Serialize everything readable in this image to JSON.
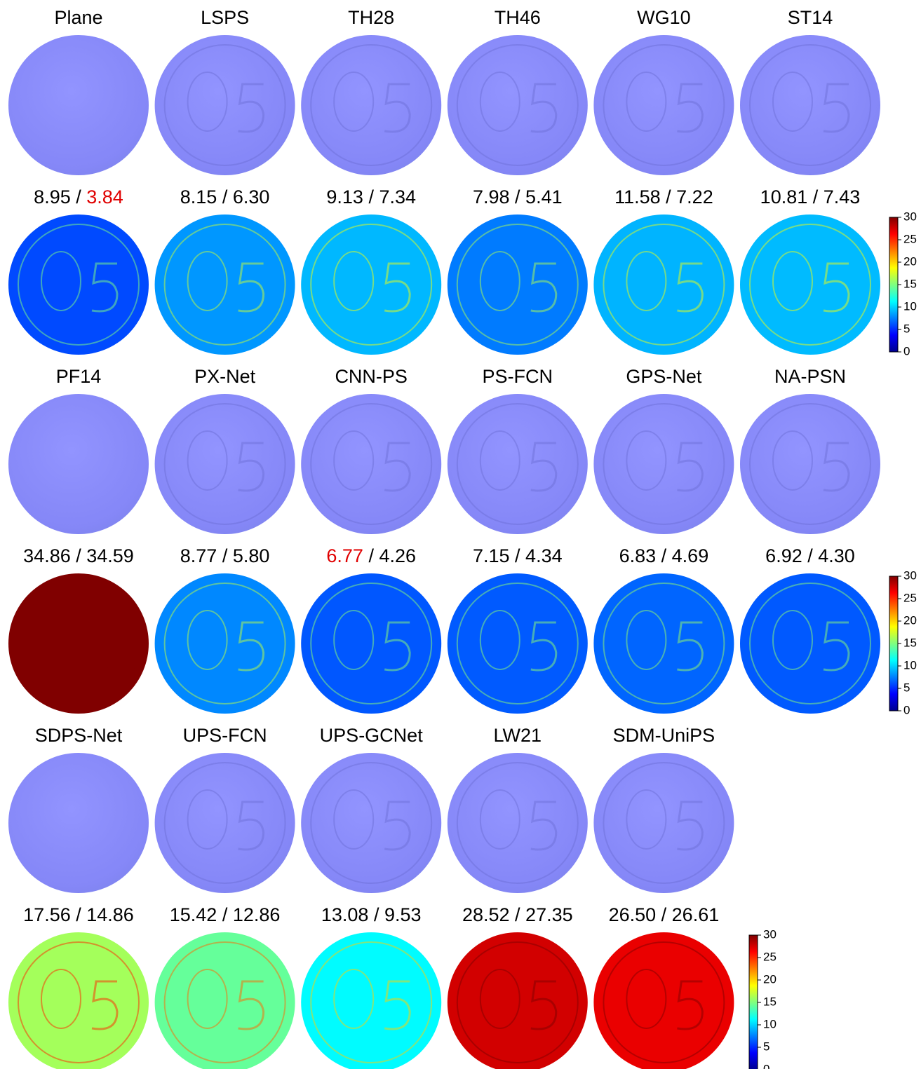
{
  "separator": " / ",
  "colorbar_range": [
    0,
    30
  ],
  "colorbar_ticks": [
    0,
    5,
    10,
    15,
    20,
    25,
    30
  ],
  "rows": [
    {
      "kind": "normal",
      "labels": [
        "Plane",
        "LSPS",
        "TH28",
        "TH46",
        "WG10",
        "ST14"
      ]
    },
    {
      "kind": "error",
      "colorbar": true,
      "errors": [
        {
          "mean": "8.95",
          "median": "3.84",
          "red": "median"
        },
        {
          "mean": "8.15",
          "median": "6.30"
        },
        {
          "mean": "9.13",
          "median": "7.34"
        },
        {
          "mean": "7.98",
          "median": "5.41"
        },
        {
          "mean": "11.58",
          "median": "7.22"
        },
        {
          "mean": "10.81",
          "median": "7.43"
        }
      ]
    },
    {
      "kind": "normal",
      "labels": [
        "PF14",
        "PX-Net",
        "CNN-PS",
        "PS-FCN",
        "GPS-Net",
        "NA-PSN"
      ]
    },
    {
      "kind": "error",
      "colorbar": true,
      "errors": [
        {
          "mean": "34.86",
          "median": "34.59"
        },
        {
          "mean": "8.77",
          "median": "5.80"
        },
        {
          "mean": "6.77",
          "median": "4.26",
          "red": "mean"
        },
        {
          "mean": "7.15",
          "median": "4.34"
        },
        {
          "mean": "6.83",
          "median": "4.69"
        },
        {
          "mean": "6.92",
          "median": "4.30"
        }
      ]
    },
    {
      "kind": "normal",
      "labels": [
        "SDPS-Net",
        "UPS-FCN",
        "UPS-GCNet",
        "LW21",
        "SDM-UniPS"
      ]
    },
    {
      "kind": "error",
      "colorbar": true,
      "errors": [
        {
          "mean": "17.56",
          "median": "14.86"
        },
        {
          "mean": "15.42",
          "median": "12.86"
        },
        {
          "mean": "13.08",
          "median": "9.53"
        },
        {
          "mean": "28.52",
          "median": "27.35"
        },
        {
          "mean": "26.50",
          "median": "26.61"
        }
      ]
    }
  ]
}
